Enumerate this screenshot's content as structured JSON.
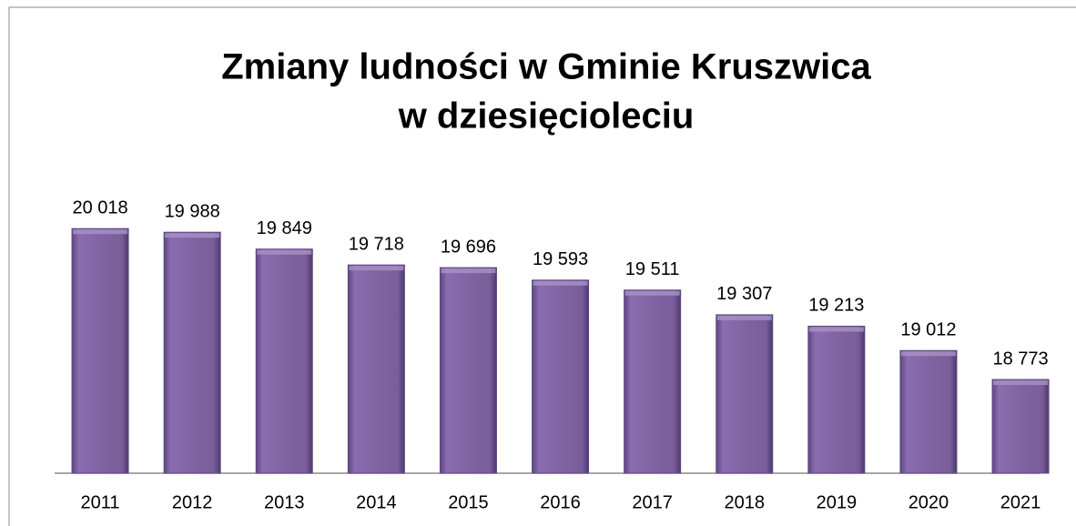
{
  "chart_data": {
    "type": "bar",
    "title": [
      "Zmiany ludności w Gminie Kruszwica",
      "w dziesięcioleciu"
    ],
    "categories": [
      "2011",
      "2012",
      "2013",
      "2014",
      "2015",
      "2016",
      "2017",
      "2018",
      "2019",
      "2020",
      "2021"
    ],
    "values": [
      20018,
      19988,
      19849,
      19718,
      19696,
      19593,
      19511,
      19307,
      19213,
      19012,
      18773
    ],
    "value_labels": [
      "20 018",
      "19 988",
      "19 849",
      "19 718",
      "19 696",
      "19 593",
      "19 511",
      "19 307",
      "19 213",
      "19 012",
      "18 773"
    ],
    "color": "#8064a2",
    "ylim": [
      18000,
      20500
    ]
  }
}
